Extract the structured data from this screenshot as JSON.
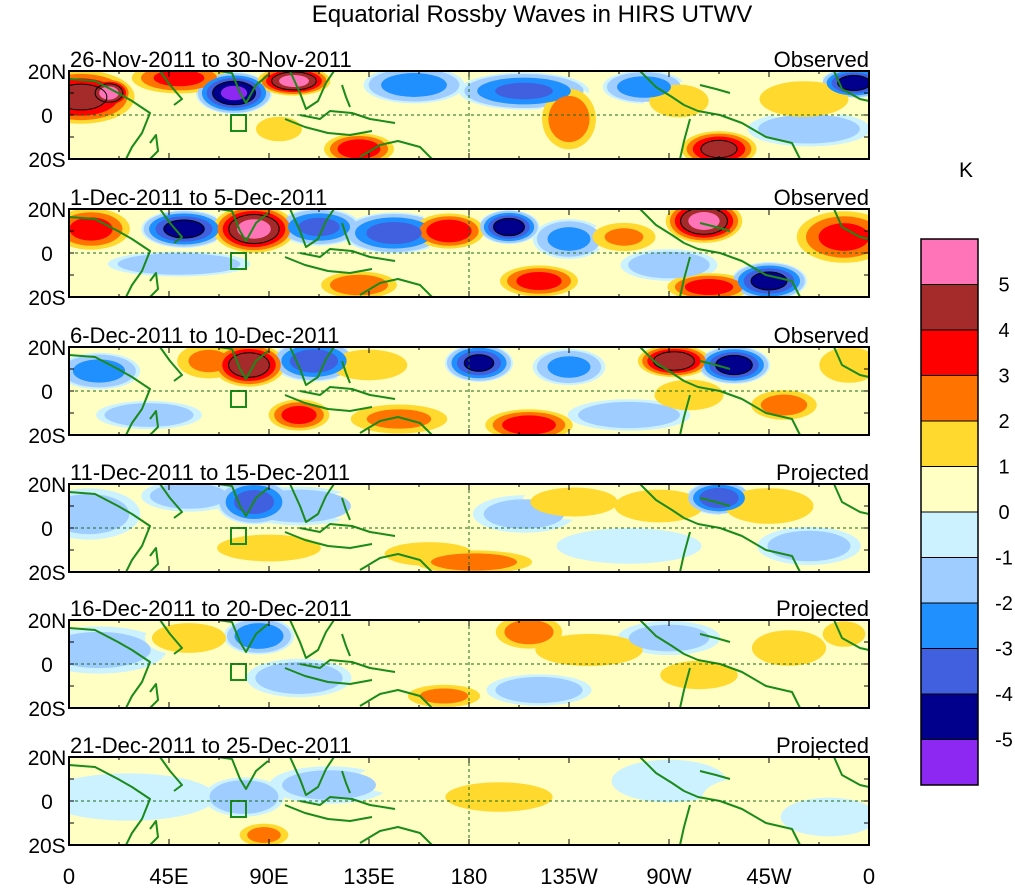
{
  "title": "Equatorial Rossby Waves in HIRS UTWV",
  "panels": [
    {
      "date_range": "26-Nov-2011 to 30-Nov-2011",
      "status": "Observed"
    },
    {
      "date_range": "1-Dec-2011 to 5-Dec-2011",
      "status": "Observed"
    },
    {
      "date_range": "6-Dec-2011 to 10-Dec-2011",
      "status": "Observed"
    },
    {
      "date_range": "11-Dec-2011 to 15-Dec-2011",
      "status": "Projected"
    },
    {
      "date_range": "16-Dec-2011 to 20-Dec-2011",
      "status": "Projected"
    },
    {
      "date_range": "21-Dec-2011 to 25-Dec-2011",
      "status": "Projected"
    }
  ],
  "lat_labels": [
    "20N",
    "0",
    "20S"
  ],
  "lon_labels": [
    "0",
    "45E",
    "90E",
    "135E",
    "180",
    "135W",
    "90W",
    "45W",
    "0"
  ],
  "colorbar": {
    "unit": "K",
    "labels": [
      "5",
      "4",
      "3",
      "2",
      "1",
      "0",
      "-1",
      "-2",
      "-3",
      "-4",
      "-5"
    ],
    "colors": [
      "#ff73b9",
      "#a52a2a",
      "#ff0000",
      "#ff7300",
      "#ffd92e",
      "#ffffc4",
      "#ccf2ff",
      "#a0cdff",
      "#2090ff",
      "#4060e0",
      "#00008c",
      "#8d27f2"
    ]
  },
  "colors": {
    "coast": "#1a8a1a",
    "frame": "#000000"
  }
}
